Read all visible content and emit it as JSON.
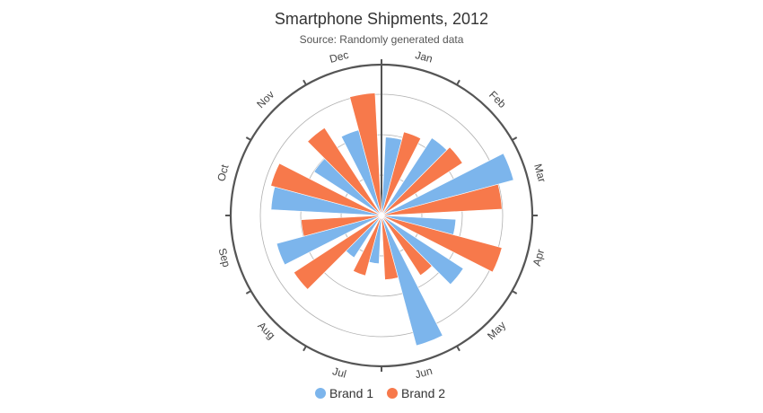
{
  "chart_data": {
    "type": "bar",
    "polar": true,
    "title": "Smartphone Shipments, 2012",
    "subtitle": "Source: Randomly generated data",
    "categories": [
      "Jan",
      "Feb",
      "Mar",
      "Apr",
      "May",
      "Jun",
      "Jul",
      "Aug",
      "Sep",
      "Oct",
      "Nov",
      "Dec"
    ],
    "series": [
      {
        "name": "Brand 1",
        "color": "#7cb5ec",
        "values": [
          78,
          92,
          136,
          74,
          97,
          134,
          48,
          50,
          108,
          110,
          80,
          88
        ]
      },
      {
        "name": "Brand 2",
        "color": "#f7794b",
        "values": [
          86,
          96,
          120,
          124,
          71,
          64,
          62,
          104,
          80,
          114,
          104,
          122
        ]
      }
    ],
    "radial_range": [
      0,
      150
    ],
    "grid": true,
    "legend_position": "bottom-center"
  },
  "legend": {
    "items": [
      {
        "label": "Brand 1",
        "color": "#7cb5ec"
      },
      {
        "label": "Brand 2",
        "color": "#f7794b"
      }
    ]
  }
}
